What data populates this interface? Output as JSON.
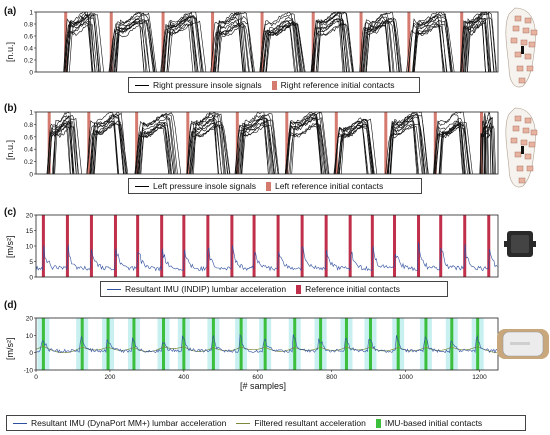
{
  "panels": [
    {
      "letter": "(a)",
      "ylabel": "[n.u.]"
    },
    {
      "letter": "(b)",
      "ylabel": "[n.u.]"
    },
    {
      "letter": "(c)",
      "ylabel": "[m/s²]"
    },
    {
      "letter": "(d)",
      "ylabel": "[m/s²]",
      "xlabel": "[# samples]"
    }
  ],
  "legends": {
    "a": [
      "Right pressure insole signals",
      "Right reference initial contacts"
    ],
    "b": [
      "Left pressure insole signals",
      "Left reference initial contacts"
    ],
    "c": [
      "Resultant IMU (INDIP) lumbar acceleration",
      "Reference initial contacts"
    ],
    "d": [
      "Resultant IMU (DynaPort MM+) lumbar acceleration",
      "Filtered resultant acceleration",
      "IMU-based initial contacts"
    ]
  },
  "colors": {
    "insole": "#111111",
    "reference_contact": "#c0304a",
    "reference_contact_insole": "#d47a6e",
    "imu_raw": "#2f4f9f",
    "imu_filtered": "#7a8a3a",
    "imu_contact": "#3cbf3c",
    "imu_contact_band": "#c8f0f0"
  },
  "chart_data": [
    {
      "type": "line",
      "panel": "a",
      "ylabel": "[n.u.]",
      "ylim": [
        0,
        1
      ],
      "yticks": [
        "0",
        "0.2",
        "0.4",
        "0.6",
        "0.8",
        "1"
      ],
      "series": [
        {
          "name": "Right pressure insole signals"
        }
      ],
      "initial_contacts_x": [
        90,
        228,
        385,
        535,
        685,
        840,
        985,
        1130,
        1290
      ],
      "xlim": [
        0,
        1400
      ],
      "grid": false
    },
    {
      "type": "line",
      "panel": "b",
      "ylabel": "[n.u.]",
      "ylim": [
        0,
        1
      ],
      "yticks": [
        "0",
        "0.2",
        "0.4",
        "0.6",
        "0.8",
        "1"
      ],
      "series": [
        {
          "name": "Left pressure insole signals"
        }
      ],
      "initial_contacts_x": [
        40,
        160,
        305,
        460,
        610,
        760,
        910,
        1060,
        1210,
        1350
      ],
      "xlim": [
        0,
        1400
      ],
      "grid": false
    },
    {
      "type": "line",
      "panel": "c",
      "ylabel": "[m/s²]",
      "ylim": [
        0,
        20
      ],
      "yticks": [
        "0",
        "5",
        "10",
        "15",
        "20"
      ],
      "series": [
        {
          "name": "Resultant IMU (INDIP) lumbar acceleration"
        }
      ],
      "initial_contacts_x": [
        20,
        85,
        150,
        215,
        275,
        340,
        400,
        465,
        530,
        590,
        655,
        720,
        785,
        850,
        910,
        970,
        1035,
        1095,
        1160,
        1225
      ],
      "xlim": [
        0,
        1250
      ],
      "grid": false
    },
    {
      "type": "line",
      "panel": "d",
      "ylabel": "[m/s²]",
      "xlabel": "[# samples]",
      "ylim": [
        -10,
        20
      ],
      "yticks": [
        "-10",
        "0",
        "10",
        "20"
      ],
      "xlim": [
        0,
        1250
      ],
      "xticks": [
        "0",
        "200",
        "400",
        "600",
        "800",
        "1000",
        "1200"
      ],
      "series": [
        {
          "name": "Resultant IMU (DynaPort MM+) lumbar acceleration"
        },
        {
          "name": "Filtered resultant acceleration"
        }
      ],
      "initial_contacts_x": [
        20,
        125,
        195,
        265,
        345,
        400,
        480,
        555,
        620,
        700,
        770,
        840,
        905,
        980,
        1055,
        1125,
        1195
      ],
      "grid": false
    }
  ]
}
